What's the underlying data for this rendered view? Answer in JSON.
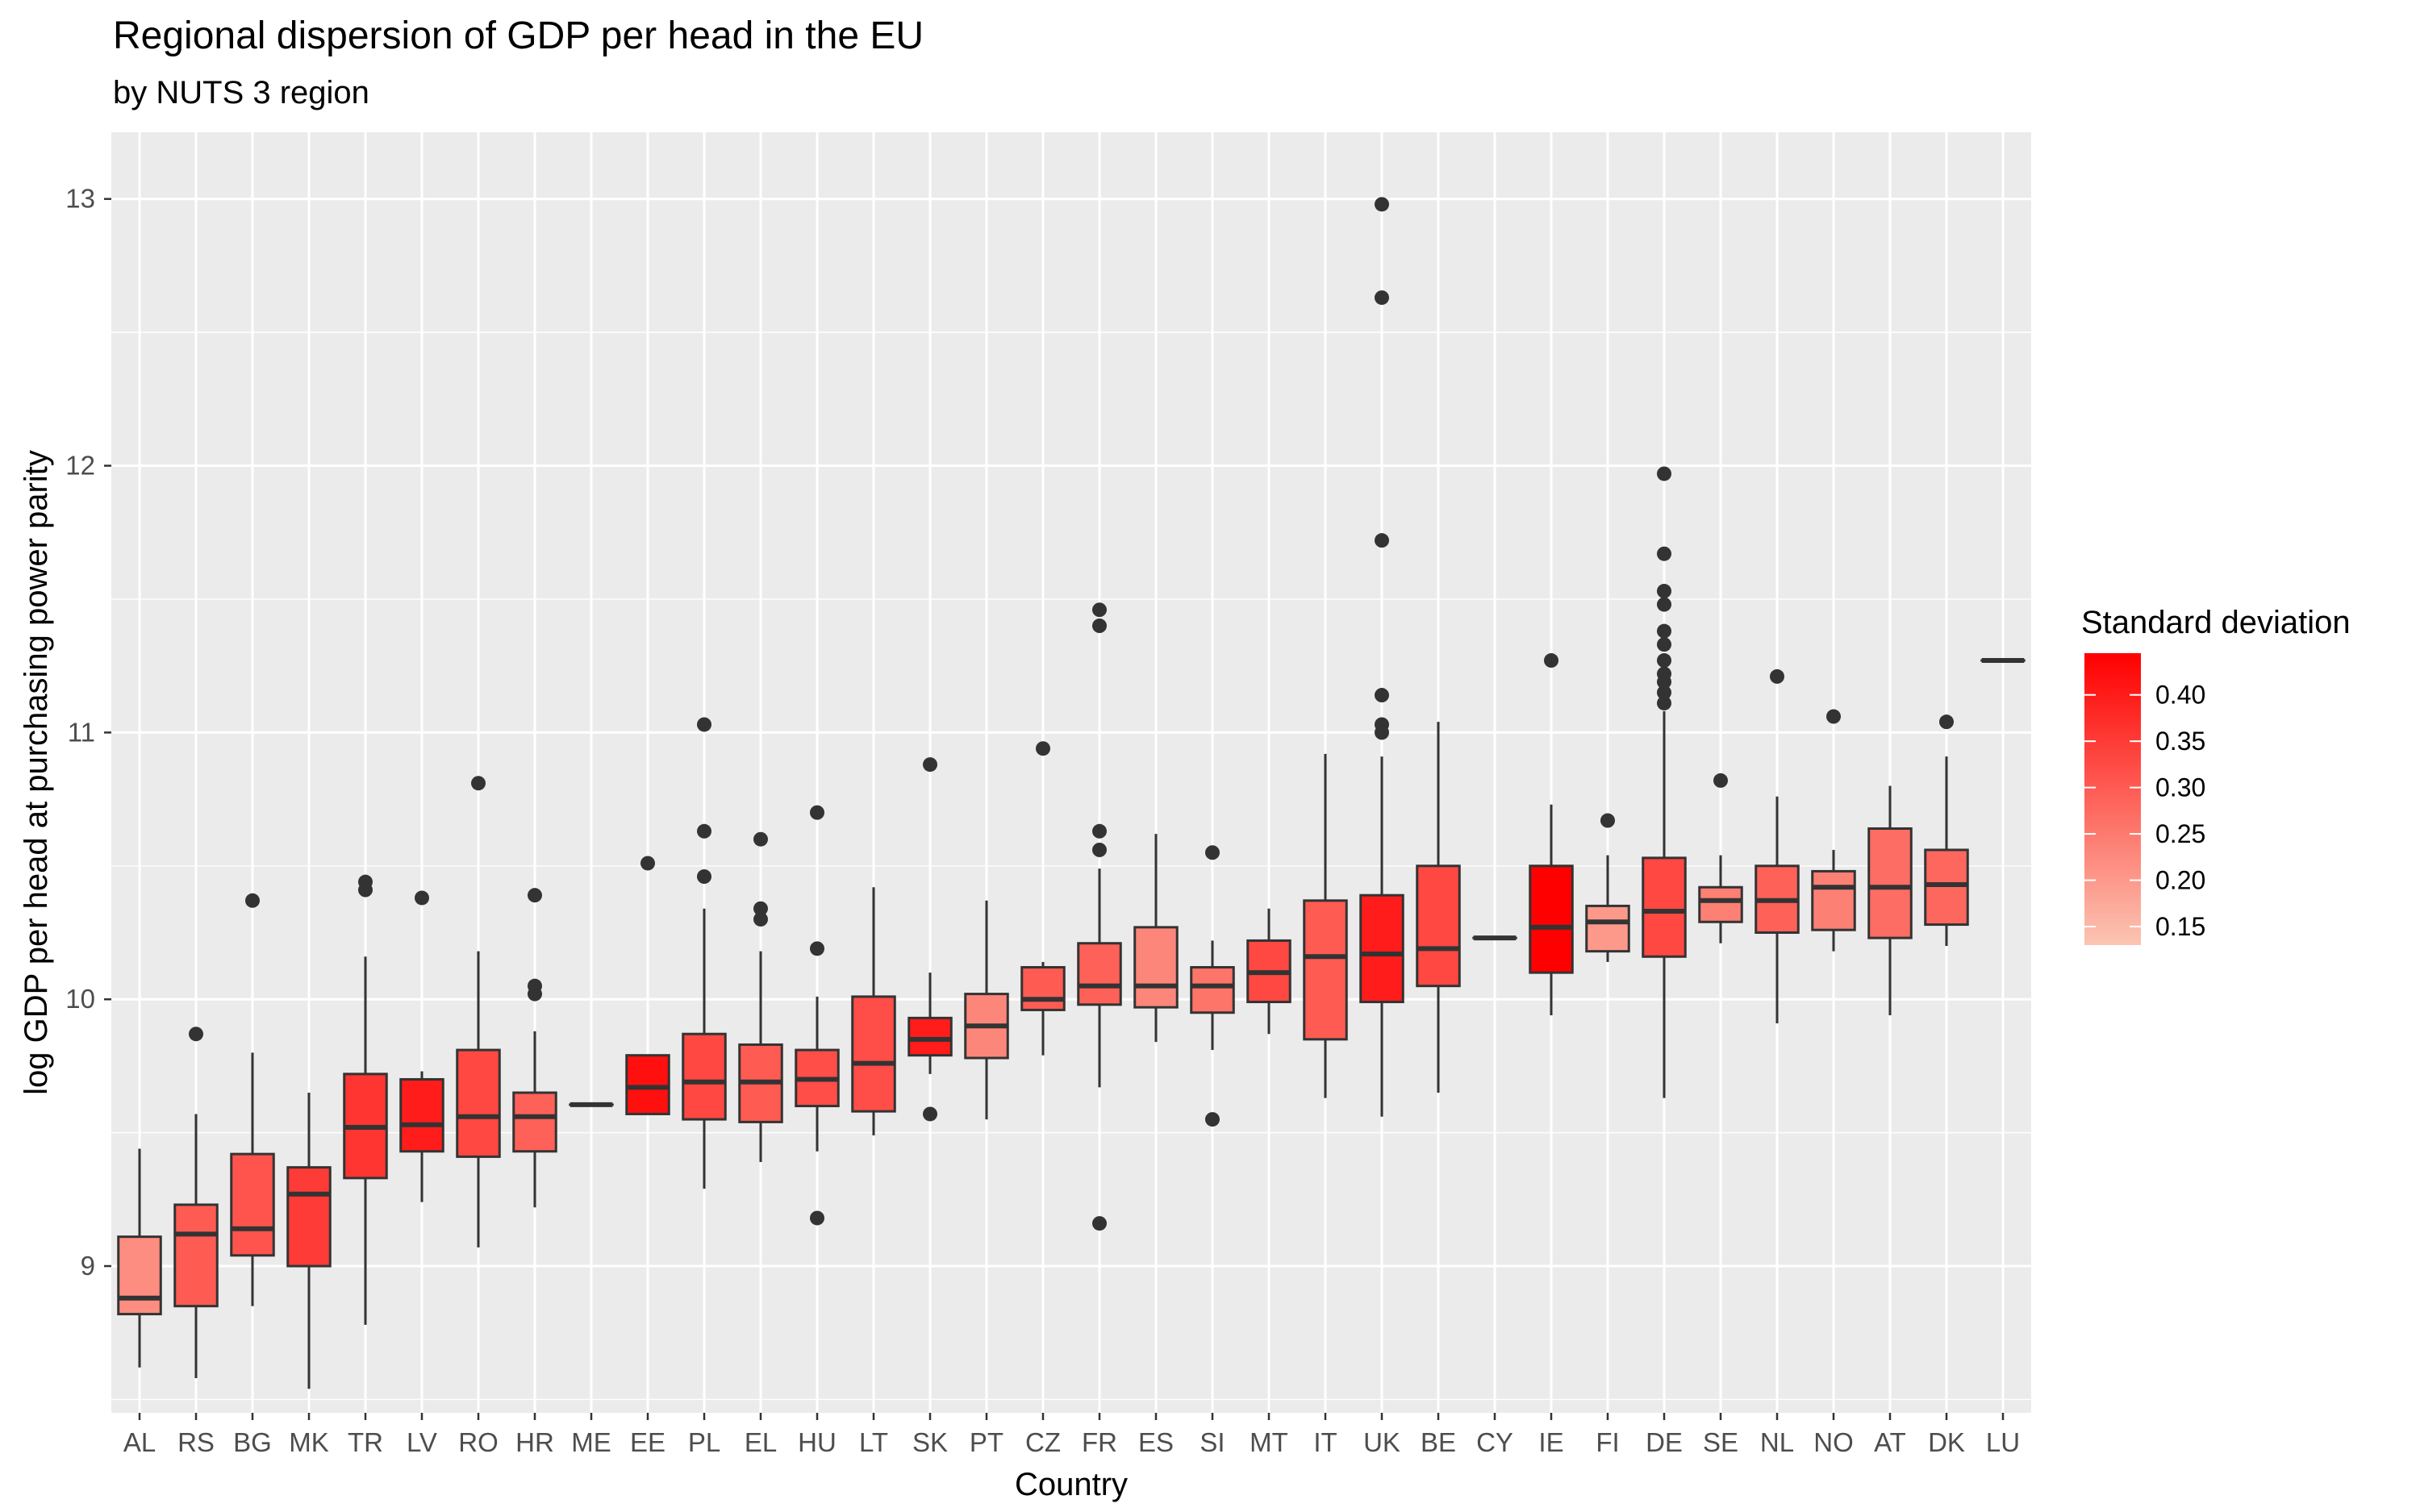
{
  "chart_data": {
    "type": "boxplot",
    "title": "Regional dispersion of GDP per head in the EU",
    "subtitle": "by NUTS 3 region",
    "xlabel": "Country",
    "ylabel": "log GDP per head at purchasing power parity",
    "ylim": [
      8.45,
      13.25
    ],
    "yticks": [
      9,
      10,
      11,
      12,
      13
    ],
    "grid": true,
    "legend": {
      "title": "Standard deviation",
      "position": "right",
      "min": 0.13,
      "max": 0.445,
      "low_color": "#fcc5b3",
      "high_color": "#ff0000",
      "ticks": [
        0.15,
        0.2,
        0.25,
        0.3,
        0.35,
        0.4
      ],
      "tick_labels": [
        "0.15",
        "0.20",
        "0.25",
        "0.30",
        "0.35",
        "0.40"
      ]
    },
    "categories": [
      "AL",
      "RS",
      "BG",
      "MK",
      "TR",
      "LV",
      "RO",
      "HR",
      "ME",
      "EE",
      "PL",
      "EL",
      "HU",
      "LT",
      "SK",
      "PT",
      "CZ",
      "FR",
      "ES",
      "SI",
      "MT",
      "IT",
      "UK",
      "BE",
      "CY",
      "IE",
      "FI",
      "DE",
      "SE",
      "NL",
      "NO",
      "AT",
      "DK",
      "LU"
    ],
    "boxes": [
      {
        "country": "AL",
        "sd": 0.22,
        "whisker_low": 8.62,
        "q1": 8.82,
        "median": 8.88,
        "q3": 9.11,
        "whisker_high": 9.44,
        "outliers": []
      },
      {
        "country": "RS",
        "sd": 0.3,
        "whisker_low": 8.58,
        "q1": 8.85,
        "median": 9.12,
        "q3": 9.23,
        "whisker_high": 9.57,
        "outliers": [
          9.87
        ]
      },
      {
        "country": "BG",
        "sd": 0.31,
        "whisker_low": 8.85,
        "q1": 9.04,
        "median": 9.14,
        "q3": 9.42,
        "whisker_high": 9.8,
        "outliers": [
          10.37
        ]
      },
      {
        "country": "MK",
        "sd": 0.35,
        "whisker_low": 8.54,
        "q1": 9.0,
        "median": 9.27,
        "q3": 9.37,
        "whisker_high": 9.65,
        "outliers": []
      },
      {
        "country": "TR",
        "sd": 0.36,
        "whisker_low": 8.78,
        "q1": 9.33,
        "median": 9.52,
        "q3": 9.72,
        "whisker_high": 10.16,
        "outliers": [
          10.41,
          10.44
        ]
      },
      {
        "country": "LV",
        "sd": 0.4,
        "whisker_low": 9.24,
        "q1": 9.43,
        "median": 9.53,
        "q3": 9.7,
        "whisker_high": 9.73,
        "outliers": [
          10.38
        ]
      },
      {
        "country": "RO",
        "sd": 0.33,
        "whisker_low": 9.07,
        "q1": 9.41,
        "median": 9.56,
        "q3": 9.81,
        "whisker_high": 10.18,
        "outliers": [
          10.81
        ]
      },
      {
        "country": "HR",
        "sd": 0.29,
        "whisker_low": 9.22,
        "q1": 9.43,
        "median": 9.56,
        "q3": 9.65,
        "whisker_high": 9.88,
        "outliers": [
          10.02,
          10.05,
          10.39
        ]
      },
      {
        "country": "ME",
        "sd": 0.33,
        "whisker_low": 9.605,
        "q1": 9.605,
        "median": 9.605,
        "q3": 9.605,
        "whisker_high": 9.605,
        "outliers": []
      },
      {
        "country": "EE",
        "sd": 0.42,
        "whisker_low": 9.57,
        "q1": 9.57,
        "median": 9.67,
        "q3": 9.79,
        "whisker_high": 9.79,
        "outliers": [
          10.51
        ]
      },
      {
        "country": "PL",
        "sd": 0.33,
        "whisker_low": 9.29,
        "q1": 9.55,
        "median": 9.69,
        "q3": 9.87,
        "whisker_high": 10.34,
        "outliers": [
          10.46,
          10.63,
          11.03
        ]
      },
      {
        "country": "EL",
        "sd": 0.3,
        "whisker_low": 9.39,
        "q1": 9.54,
        "median": 9.69,
        "q3": 9.83,
        "whisker_high": 10.18,
        "outliers": [
          10.3,
          10.34,
          10.6
        ]
      },
      {
        "country": "HU",
        "sd": 0.32,
        "whisker_low": 9.43,
        "q1": 9.6,
        "median": 9.7,
        "q3": 9.81,
        "whisker_high": 10.01,
        "outliers": [
          9.18,
          10.19,
          10.7
        ]
      },
      {
        "country": "LT",
        "sd": 0.32,
        "whisker_low": 9.49,
        "q1": 9.58,
        "median": 9.76,
        "q3": 10.01,
        "whisker_high": 10.42,
        "outliers": []
      },
      {
        "country": "SK",
        "sd": 0.4,
        "whisker_low": 9.72,
        "q1": 9.79,
        "median": 9.85,
        "q3": 9.93,
        "whisker_high": 10.1,
        "outliers": [
          9.57,
          10.88
        ]
      },
      {
        "country": "PT",
        "sd": 0.23,
        "whisker_low": 9.55,
        "q1": 9.78,
        "median": 9.9,
        "q3": 10.02,
        "whisker_high": 10.37,
        "outliers": []
      },
      {
        "country": "CZ",
        "sd": 0.3,
        "whisker_low": 9.79,
        "q1": 9.96,
        "median": 10.0,
        "q3": 10.12,
        "whisker_high": 10.14,
        "outliers": [
          10.94
        ]
      },
      {
        "country": "FR",
        "sd": 0.29,
        "whisker_low": 9.67,
        "q1": 9.98,
        "median": 10.05,
        "q3": 10.21,
        "whisker_high": 10.49,
        "outliers": [
          9.16,
          10.56,
          10.63,
          11.4,
          11.46
        ]
      },
      {
        "country": "ES",
        "sd": 0.23,
        "whisker_low": 9.84,
        "q1": 9.97,
        "median": 10.05,
        "q3": 10.27,
        "whisker_high": 10.62,
        "outliers": []
      },
      {
        "country": "SI",
        "sd": 0.26,
        "whisker_low": 9.81,
        "q1": 9.95,
        "median": 10.05,
        "q3": 10.12,
        "whisker_high": 10.22,
        "outliers": [
          9.55,
          10.55
        ]
      },
      {
        "country": "MT",
        "sd": 0.33,
        "whisker_low": 9.87,
        "q1": 9.99,
        "median": 10.1,
        "q3": 10.22,
        "whisker_high": 10.34,
        "outliers": []
      },
      {
        "country": "IT",
        "sd": 0.3,
        "whisker_low": 9.63,
        "q1": 9.85,
        "median": 10.16,
        "q3": 10.37,
        "whisker_high": 10.92,
        "outliers": []
      },
      {
        "country": "UK",
        "sd": 0.4,
        "whisker_low": 9.56,
        "q1": 9.99,
        "median": 10.17,
        "q3": 10.39,
        "whisker_high": 10.91,
        "outliers": [
          11.0,
          11.03,
          11.14,
          11.72,
          12.63,
          12.98
        ]
      },
      {
        "country": "BE",
        "sd": 0.33,
        "whisker_low": 9.65,
        "q1": 10.05,
        "median": 10.19,
        "q3": 10.5,
        "whisker_high": 11.04,
        "outliers": []
      },
      {
        "country": "CY",
        "sd": 0.33,
        "whisker_low": 10.23,
        "q1": 10.23,
        "median": 10.23,
        "q3": 10.23,
        "whisker_high": 10.23,
        "outliers": []
      },
      {
        "country": "IE",
        "sd": 0.445,
        "whisker_low": 9.94,
        "q1": 10.1,
        "median": 10.27,
        "q3": 10.5,
        "whisker_high": 10.73,
        "outliers": [
          11.27
        ]
      },
      {
        "country": "FI",
        "sd": 0.2,
        "whisker_low": 10.14,
        "q1": 10.18,
        "median": 10.29,
        "q3": 10.35,
        "whisker_high": 10.54,
        "outliers": [
          10.67
        ]
      },
      {
        "country": "DE",
        "sd": 0.33,
        "whisker_low": 9.63,
        "q1": 10.16,
        "median": 10.33,
        "q3": 10.53,
        "whisker_high": 11.08,
        "outliers": [
          11.11,
          11.15,
          11.19,
          11.22,
          11.27,
          11.33,
          11.38,
          11.48,
          11.53,
          11.67,
          11.97
        ]
      },
      {
        "country": "SE",
        "sd": 0.24,
        "whisker_low": 10.21,
        "q1": 10.29,
        "median": 10.37,
        "q3": 10.42,
        "whisker_high": 10.54,
        "outliers": [
          10.82
        ]
      },
      {
        "country": "NL",
        "sd": 0.29,
        "whisker_low": 9.91,
        "q1": 10.25,
        "median": 10.37,
        "q3": 10.5,
        "whisker_high": 10.76,
        "outliers": [
          11.21
        ]
      },
      {
        "country": "NO",
        "sd": 0.24,
        "whisker_low": 10.18,
        "q1": 10.26,
        "median": 10.42,
        "q3": 10.48,
        "whisker_high": 10.56,
        "outliers": [
          11.06
        ]
      },
      {
        "country": "AT",
        "sd": 0.27,
        "whisker_low": 9.94,
        "q1": 10.23,
        "median": 10.42,
        "q3": 10.64,
        "whisker_high": 10.8,
        "outliers": []
      },
      {
        "country": "DK",
        "sd": 0.28,
        "whisker_low": 10.2,
        "q1": 10.28,
        "median": 10.43,
        "q3": 10.56,
        "whisker_high": 10.91,
        "outliers": [
          11.04
        ]
      },
      {
        "country": "LU",
        "sd": 0.33,
        "whisker_low": 11.27,
        "q1": 11.27,
        "median": 11.27,
        "q3": 11.27,
        "whisker_high": 11.27,
        "outliers": []
      }
    ]
  }
}
